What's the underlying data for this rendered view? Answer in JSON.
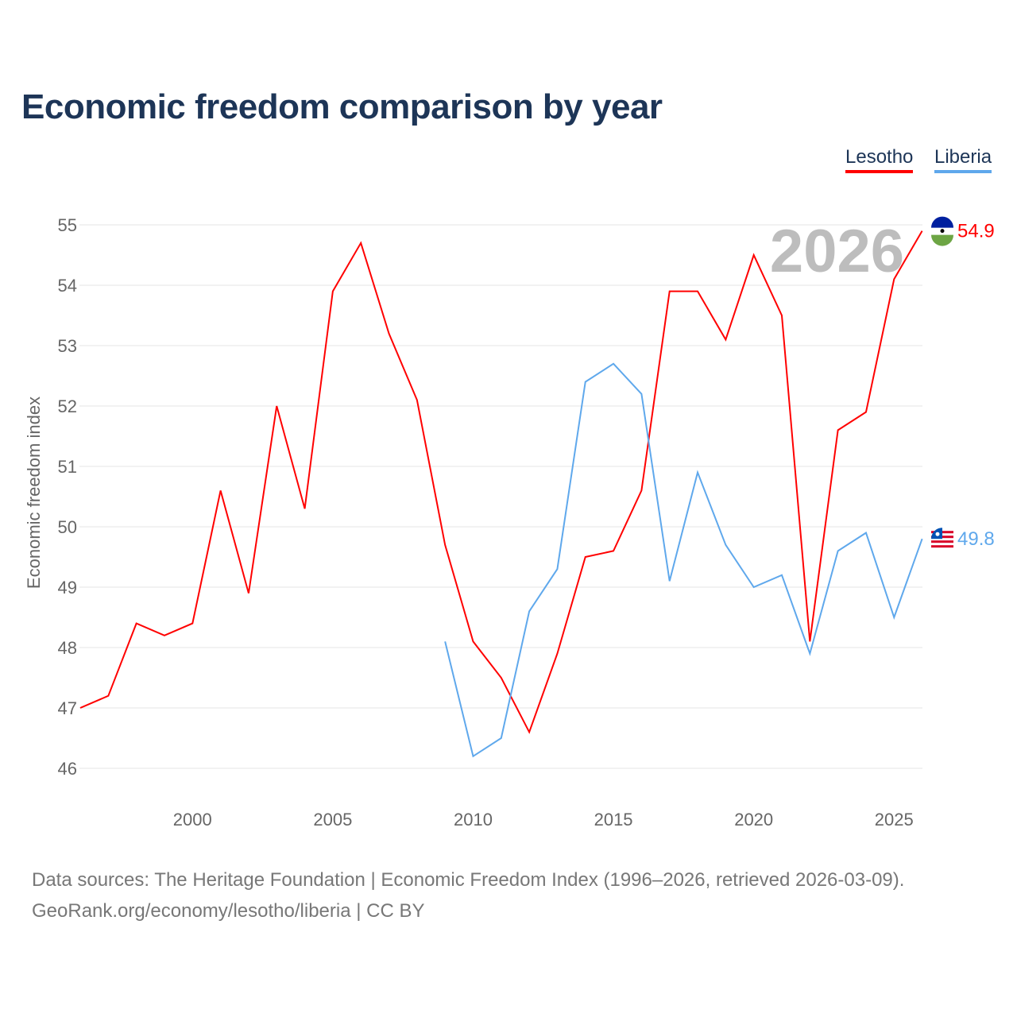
{
  "title": "Economic freedom comparison by year",
  "legend": {
    "lesotho": "Lesotho",
    "liberia": "Liberia"
  },
  "year_watermark": "2026",
  "source": {
    "line1": "Data sources: The Heritage Foundation | Economic Freedom Index (1996–2026, retrieved 2026-03-09).",
    "line2": "GeoRank.org/economy/lesotho/liberia | CC BY"
  },
  "chart_data": {
    "type": "line",
    "title": "Economic freedom comparison by year",
    "xlabel": "",
    "ylabel": "Economic freedom index",
    "xlim": [
      1996,
      2026
    ],
    "ylim": [
      45.6,
      55
    ],
    "xticks": [
      2000,
      2005,
      2010,
      2015,
      2020,
      2025
    ],
    "yticks": [
      46,
      47,
      48,
      49,
      50,
      51,
      52,
      53,
      54,
      55
    ],
    "grid": true,
    "legend_position": "top-right",
    "series": [
      {
        "name": "Lesotho",
        "color": "#ff0000",
        "end_label": "54.9",
        "x": [
          1996,
          1997,
          1998,
          1999,
          2000,
          2001,
          2002,
          2003,
          2004,
          2005,
          2006,
          2007,
          2008,
          2009,
          2010,
          2011,
          2012,
          2013,
          2014,
          2015,
          2016,
          2017,
          2018,
          2019,
          2020,
          2021,
          2022,
          2023,
          2024,
          2025,
          2026
        ],
        "y": [
          47.0,
          47.2,
          48.4,
          48.2,
          48.4,
          50.6,
          48.9,
          52.0,
          50.3,
          53.9,
          54.7,
          53.2,
          52.1,
          49.7,
          48.1,
          47.5,
          46.6,
          47.9,
          49.5,
          49.6,
          50.6,
          53.9,
          53.9,
          53.1,
          54.5,
          53.5,
          48.1,
          51.6,
          51.9,
          54.1,
          54.9
        ]
      },
      {
        "name": "Liberia",
        "color": "#5fa8ec",
        "end_label": "49.8",
        "x": [
          2009,
          2010,
          2011,
          2012,
          2013,
          2014,
          2015,
          2016,
          2017,
          2018,
          2019,
          2020,
          2021,
          2022,
          2023,
          2024,
          2025,
          2026
        ],
        "y": [
          48.1,
          46.2,
          46.5,
          48.6,
          49.3,
          52.4,
          52.7,
          52.2,
          49.1,
          50.9,
          49.7,
          49.0,
          49.2,
          47.9,
          49.6,
          49.9,
          48.5,
          49.8
        ]
      }
    ]
  }
}
